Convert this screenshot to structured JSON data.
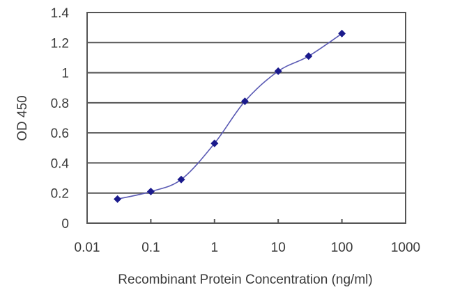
{
  "chart_data": {
    "type": "line",
    "title": "",
    "xlabel": "Recombinant Protein Concentration (ng/ml)",
    "ylabel": "OD 450",
    "xscale": "log",
    "xlim": [
      0.01,
      1000
    ],
    "ylim": [
      0,
      1.4
    ],
    "x_ticks": [
      "0.01",
      "0.1",
      "1",
      "10",
      "100",
      "1000"
    ],
    "y_ticks": [
      "0",
      "0.2",
      "0.4",
      "0.6",
      "0.8",
      "1",
      "1.2",
      "1.4"
    ],
    "grid": {
      "horizontal": true,
      "vertical": false
    },
    "legend": null,
    "series": [
      {
        "name": "OD 450",
        "color": "#1a1a8c",
        "line_color": "#5a5ab4",
        "marker": "diamond",
        "x": [
          0.03,
          0.1,
          0.3,
          1,
          3,
          10,
          30,
          100
        ],
        "values": [
          0.16,
          0.21,
          0.29,
          0.53,
          0.81,
          1.01,
          1.11,
          1.26
        ]
      }
    ]
  }
}
